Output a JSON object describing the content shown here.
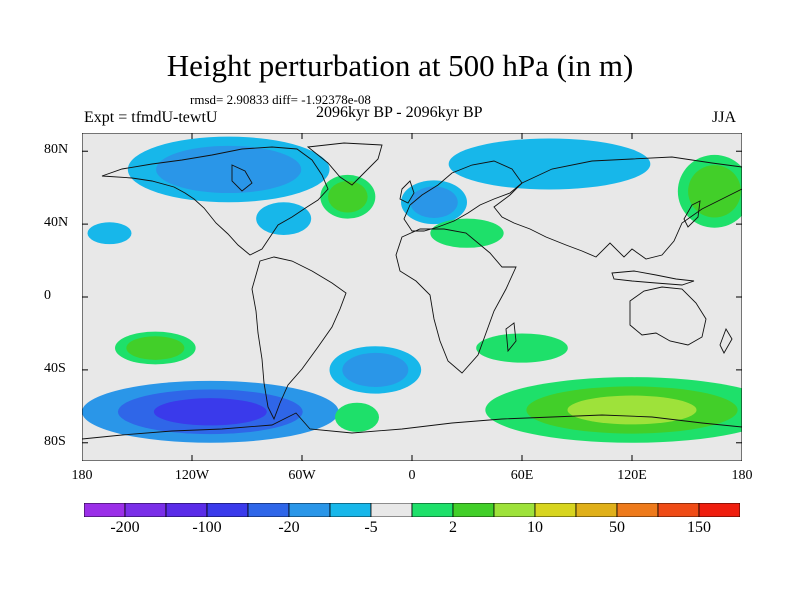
{
  "title": "Height perturbation at 500 hPa (in m)",
  "stats": "rmsd= 2.90833 diff= -1.92378e-08",
  "experiment": "Expt = tfmdU-tewtU",
  "period": "2096kyr BP - 2096kyr BP",
  "season": "JJA",
  "colors": {
    "background": "#e8e8e8",
    "coast": "#111111",
    "palette": [
      "#9b2fe8",
      "#7a2fe8",
      "#5a2ce8",
      "#3a3aeb",
      "#2f66e8",
      "#2a96e8",
      "#17b7ea",
      "#e8e8e8",
      "#1ee06a",
      "#42cf29",
      "#9ee23a",
      "#d8d51f",
      "#e0b01a",
      "#ee7a1b",
      "#ef4b16",
      "#ef1e0e"
    ]
  },
  "map": {
    "lon_range": [
      -180,
      180
    ],
    "lat_range": [
      -90,
      90
    ],
    "y_ticks": [
      {
        "lat": 80,
        "label": "80N"
      },
      {
        "lat": 40,
        "label": "40N"
      },
      {
        "lat": 0,
        "label": "0"
      },
      {
        "lat": -40,
        "label": "40S"
      },
      {
        "lat": -80,
        "label": "80S"
      }
    ],
    "x_ticks": [
      {
        "lon": -180,
        "label": "180"
      },
      {
        "lon": -120,
        "label": "120W"
      },
      {
        "lon": -60,
        "label": "60W"
      },
      {
        "lon": 0,
        "label": "0"
      },
      {
        "lon": 60,
        "label": "60E"
      },
      {
        "lon": 120,
        "label": "120E"
      },
      {
        "lon": 180,
        "label": "180"
      }
    ]
  },
  "anomaly_regions": [
    {
      "name": "south-pacific-low",
      "lon": -110,
      "lat": -63,
      "rlon": 70,
      "rlat": 17,
      "levels": [
        5,
        4,
        3
      ]
    },
    {
      "name": "south-indian-ocean-high",
      "lon": 120,
      "lat": -62,
      "rlon": 80,
      "rlat": 18,
      "levels": [
        8,
        9,
        10
      ]
    },
    {
      "name": "south-atlantic-low",
      "lon": -20,
      "lat": -40,
      "rlon": 25,
      "rlat": 13,
      "levels": [
        6,
        5
      ]
    },
    {
      "name": "south-atlantic-high",
      "lon": -30,
      "lat": -66,
      "rlon": 12,
      "rlat": 8,
      "levels": [
        8
      ]
    },
    {
      "name": "south-africa-high",
      "lon": 60,
      "lat": -28,
      "rlon": 25,
      "rlat": 8,
      "levels": [
        8
      ]
    },
    {
      "name": "southeast-pacific-high",
      "lon": -140,
      "lat": -28,
      "rlon": 22,
      "rlat": 9,
      "levels": [
        8,
        9
      ]
    },
    {
      "name": "arctic-low",
      "lon": -100,
      "lat": 70,
      "rlon": 55,
      "rlat": 18,
      "levels": [
        6,
        5
      ]
    },
    {
      "name": "greenland-high",
      "lon": -35,
      "lat": 55,
      "rlon": 15,
      "rlat": 12,
      "levels": [
        8,
        9
      ]
    },
    {
      "name": "europe-low",
      "lon": 12,
      "lat": 52,
      "rlon": 18,
      "rlat": 12,
      "levels": [
        6,
        5
      ]
    },
    {
      "name": "central-asia-high",
      "lon": 30,
      "lat": 35,
      "rlon": 20,
      "rlat": 8,
      "levels": [
        8
      ]
    },
    {
      "name": "north-asia-low",
      "lon": 75,
      "lat": 73,
      "rlon": 55,
      "rlat": 14,
      "levels": [
        6
      ]
    },
    {
      "name": "north-pacific-high",
      "lon": 165,
      "lat": 58,
      "rlon": 20,
      "rlat": 20,
      "levels": [
        8,
        9
      ]
    },
    {
      "name": "north-atlantic-low",
      "lon": -70,
      "lat": 43,
      "rlon": 15,
      "rlat": 9,
      "levels": [
        6
      ]
    },
    {
      "name": "east-pacific-low",
      "lon": -165,
      "lat": 35,
      "rlon": 12,
      "rlat": 6,
      "levels": [
        6
      ]
    }
  ],
  "colorbar": {
    "labels": [
      {
        "label": "-200",
        "after_box": 1
      },
      {
        "label": "-100",
        "after_box": 3
      },
      {
        "label": "-20",
        "after_box": 5
      },
      {
        "label": "-5",
        "after_box": 7
      },
      {
        "label": "2",
        "after_box": 9
      },
      {
        "label": "10",
        "after_box": 11
      },
      {
        "label": "50",
        "after_box": 13
      },
      {
        "label": "150",
        "after_box": 15
      }
    ]
  }
}
